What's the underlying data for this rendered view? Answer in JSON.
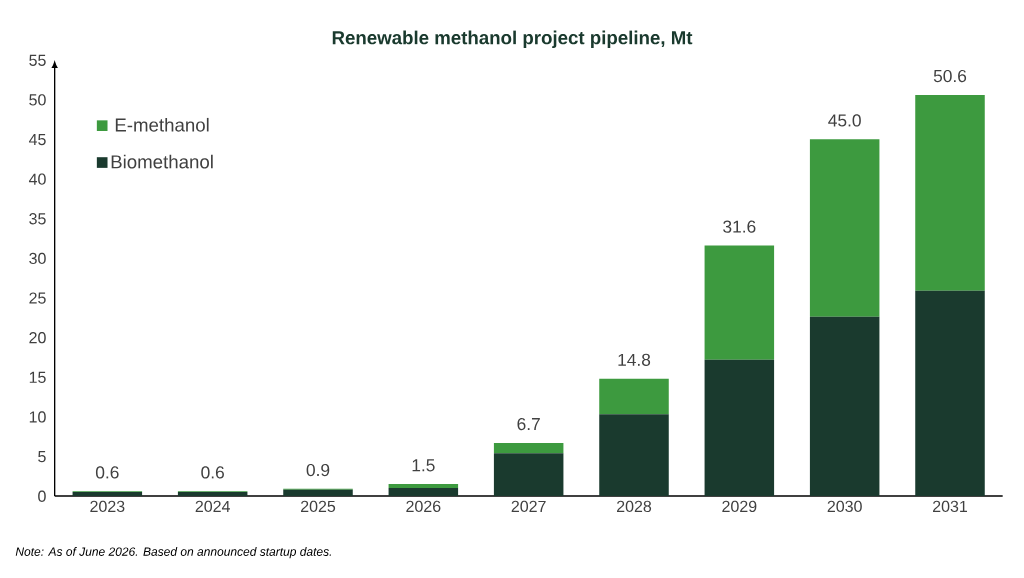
{
  "chart_data": {
    "type": "bar",
    "title": "Renewable methanol project pipeline, Mt",
    "categories": [
      "2023",
      "2024",
      "2025",
      "2026",
      "2027",
      "2028",
      "2029",
      "2030",
      "2031"
    ],
    "stacked": true,
    "series": [
      {
        "name": "Biomethanol",
        "color": "#1a3a2e",
        "values": [
          0.5,
          0.5,
          0.8,
          1.0,
          5.4,
          10.3,
          17.2,
          22.6,
          25.9
        ]
      },
      {
        "name": "E-methanol",
        "color": "#3d9a3f",
        "values": [
          0.1,
          0.1,
          0.1,
          0.5,
          1.3,
          4.5,
          14.4,
          22.4,
          24.7
        ]
      }
    ],
    "totals": [
      "0.6",
      "0.6",
      "0.9",
      "1.5",
      "6.7",
      "14.8",
      "31.6",
      "45.0",
      "50.6"
    ],
    "ylim": [
      0,
      55
    ],
    "yticks": [
      0,
      5,
      10,
      15,
      20,
      25,
      30,
      35,
      40,
      45,
      50,
      55
    ],
    "grid": false,
    "legend": "top left",
    "annotations": [
      "Note: As of June 2026. Based on announced startup dates."
    ]
  }
}
